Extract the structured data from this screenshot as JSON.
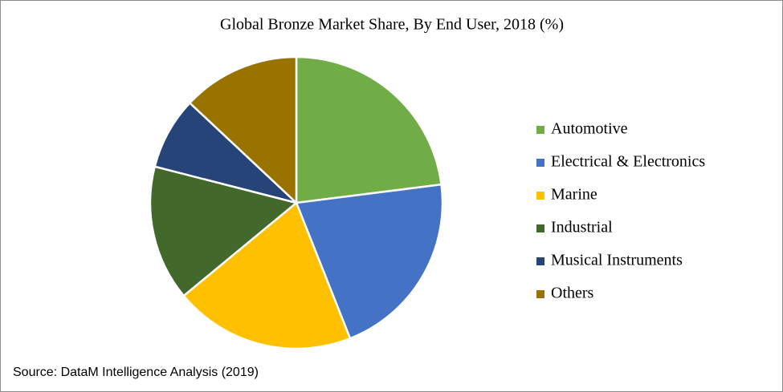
{
  "chart_data": {
    "type": "pie",
    "title": "Global Bronze Market Share, By End User, 2018 (%)",
    "categories": [
      "Automotive",
      "Electrical & Electronics",
      "Marine",
      "Industrial",
      "Musical Instruments",
      "Others"
    ],
    "values": [
      23,
      21,
      20,
      15,
      8,
      13
    ],
    "colors": [
      "#70ad47",
      "#4472c4",
      "#ffc000",
      "#43682b",
      "#264478",
      "#997300"
    ],
    "legend": "right",
    "source": "Source: DataM Intelligence Analysis (2019)"
  }
}
